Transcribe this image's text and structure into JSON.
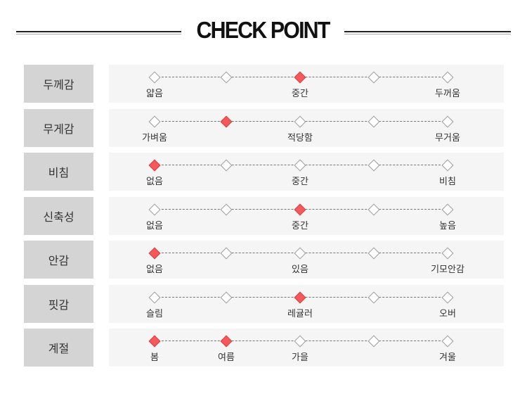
{
  "title": "CHECK POINT",
  "colors": {
    "selected": "#f9575a",
    "unselected": "#ffffff",
    "label_bg": "#d4d4d4",
    "panel_bg": "#f5f5f5"
  },
  "rows": [
    {
      "label": "두께감",
      "options": [
        "얇음",
        "",
        "중간",
        "",
        "두꺼움"
      ],
      "selected": [
        2
      ]
    },
    {
      "label": "무게감",
      "options": [
        "가벼움",
        "",
        "적당함",
        "",
        "무거움"
      ],
      "selected": [
        1
      ]
    },
    {
      "label": "비침",
      "options": [
        "없음",
        "",
        "중간",
        "",
        "비침"
      ],
      "selected": [
        0
      ]
    },
    {
      "label": "신축성",
      "options": [
        "없음",
        "",
        "중간",
        "",
        "높음"
      ],
      "selected": [
        2
      ]
    },
    {
      "label": "안감",
      "options": [
        "없음",
        "",
        "있음",
        "",
        "기모안감"
      ],
      "selected": [
        0
      ]
    },
    {
      "label": "핏감",
      "options": [
        "슬림",
        "",
        "레귤러",
        "",
        "오버"
      ],
      "selected": [
        2
      ]
    },
    {
      "label": "계절",
      "options": [
        "봄",
        "여름",
        "가을",
        "",
        "겨울"
      ],
      "selected": [
        0,
        1
      ]
    }
  ]
}
